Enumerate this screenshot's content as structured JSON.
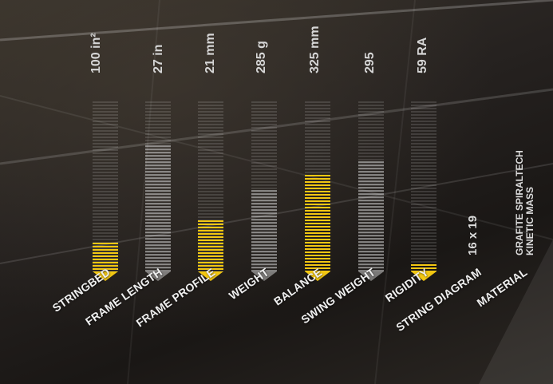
{
  "specs": [
    {
      "label": "STRINGBED",
      "value": "100 in²",
      "level": 0.17,
      "color": "yellow"
    },
    {
      "label": "FRAME LENGTH",
      "value": "27 in",
      "level": 0.74,
      "color": "grey"
    },
    {
      "label": "FRAME PROFILE",
      "value": "21 mm",
      "level": 0.3,
      "color": "yellow"
    },
    {
      "label": "WEIGHT",
      "value": "285 g",
      "level": 0.48,
      "color": "grey"
    },
    {
      "label": "BALANCE",
      "value": "325 mm",
      "level": 0.57,
      "color": "yellow"
    },
    {
      "label": "SWING WEIGHT",
      "value": "295",
      "level": 0.65,
      "color": "grey"
    },
    {
      "label": "RIGIDITY",
      "value": "59 RA",
      "level": 0.04,
      "color": "yellow"
    }
  ],
  "string_diagram": {
    "label": "STRING DIAGRAM",
    "value": "16 x 19"
  },
  "material": {
    "label": "MATERIAL",
    "value_line1": "GRAFITE SPIRALTECH",
    "value_line2": "KINETIC MASS"
  },
  "colors": {
    "accent": "#f2c712",
    "background": "#1e1b18"
  }
}
